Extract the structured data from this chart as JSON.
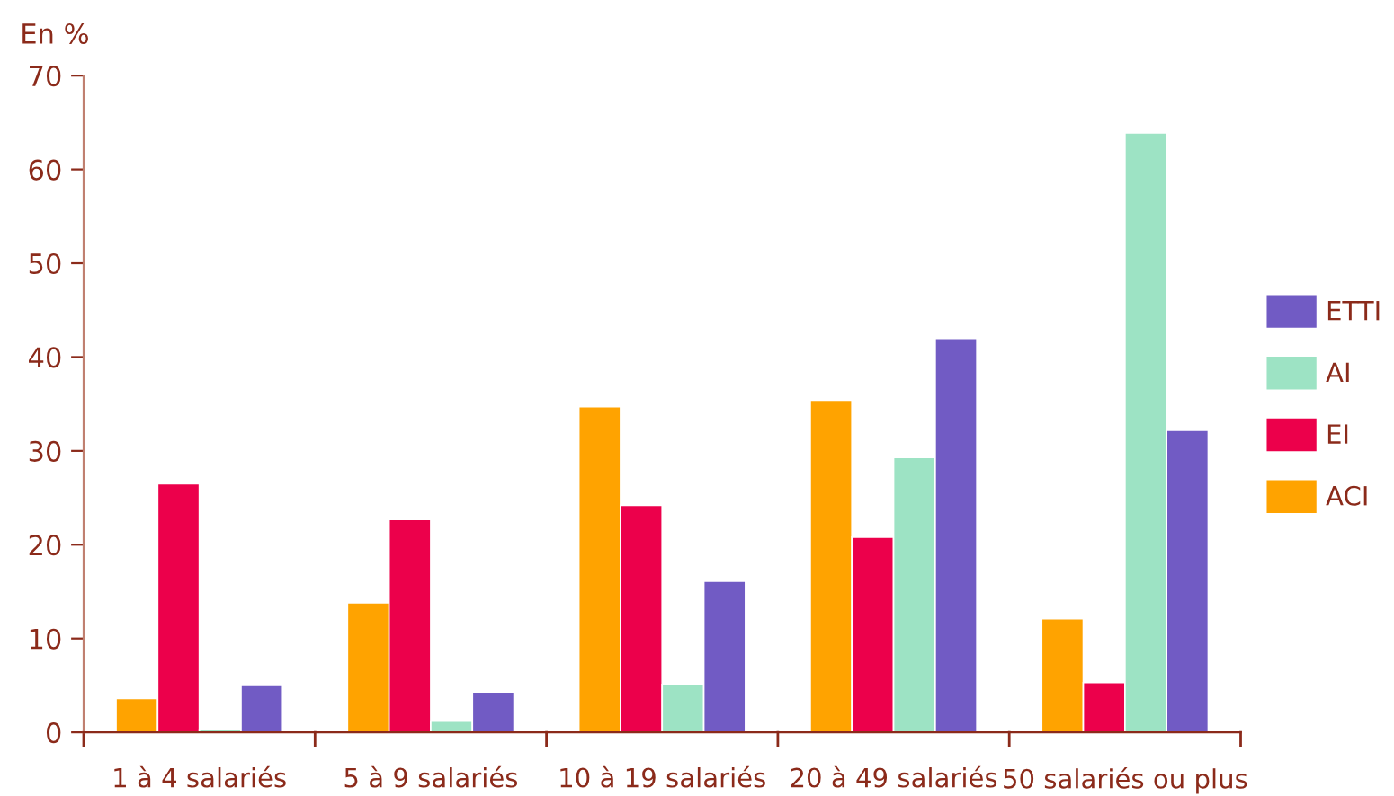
{
  "chart_data": {
    "type": "bar",
    "ylabel": "En %",
    "categories": [
      "1 à 4 salariés",
      "5 à 9 salariés",
      "10 à 19 salariés",
      "20 à 49 salariés",
      "50 salariés ou plus"
    ],
    "series": [
      {
        "name": "ACI",
        "color": "#ffa300",
        "values": [
          3.6,
          13.8,
          34.7,
          35.4,
          12.1
        ]
      },
      {
        "name": "EI",
        "color": "#ec004b",
        "values": [
          26.5,
          22.7,
          24.2,
          20.8,
          5.3
        ]
      },
      {
        "name": "AI",
        "color": "#9de3c4",
        "values": [
          0.3,
          1.2,
          5.1,
          29.3,
          63.9
        ]
      },
      {
        "name": "ETTI",
        "color": "#715bc4",
        "values": [
          5.0,
          4.3,
          16.1,
          42.0,
          32.2
        ]
      }
    ],
    "ylim": [
      0,
      70
    ],
    "yticks": [
      0,
      10,
      20,
      30,
      40,
      50,
      60,
      70
    ],
    "grid": false,
    "legend": "right"
  }
}
